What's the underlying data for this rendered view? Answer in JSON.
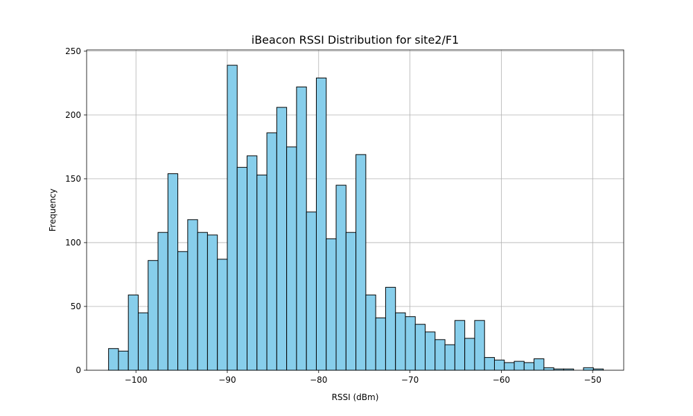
{
  "chart_data": {
    "type": "bar",
    "title": "iBeacon RSSI Distribution for site2/F1",
    "xlabel": "RSSI (dBm)",
    "ylabel": "Frequency",
    "xlim": [
      -105.4,
      -46.6
    ],
    "ylim": [
      0,
      251
    ],
    "xticks": [
      -100,
      -90,
      -80,
      -70,
      -60,
      -50
    ],
    "xtick_labels": [
      "−100",
      "−90",
      "−80",
      "−70",
      "−60",
      "−50"
    ],
    "yticks": [
      0,
      50,
      100,
      150,
      200,
      250
    ],
    "ytick_labels": [
      "0",
      "50",
      "100",
      "150",
      "200",
      "250"
    ],
    "grid": true,
    "bar_color": "#87ceeb",
    "edge_color": "#000000",
    "bin_start": -103.0,
    "bin_width": 1.0833,
    "values": [
      17,
      15,
      59,
      45,
      86,
      108,
      154,
      93,
      118,
      108,
      106,
      87,
      239,
      159,
      168,
      153,
      186,
      206,
      175,
      222,
      124,
      229,
      103,
      145,
      108,
      169,
      59,
      41,
      65,
      45,
      42,
      36,
      30,
      24,
      20,
      39,
      25,
      39,
      10,
      8,
      6,
      7,
      6,
      9,
      2,
      1,
      1,
      0,
      2,
      1
    ]
  }
}
